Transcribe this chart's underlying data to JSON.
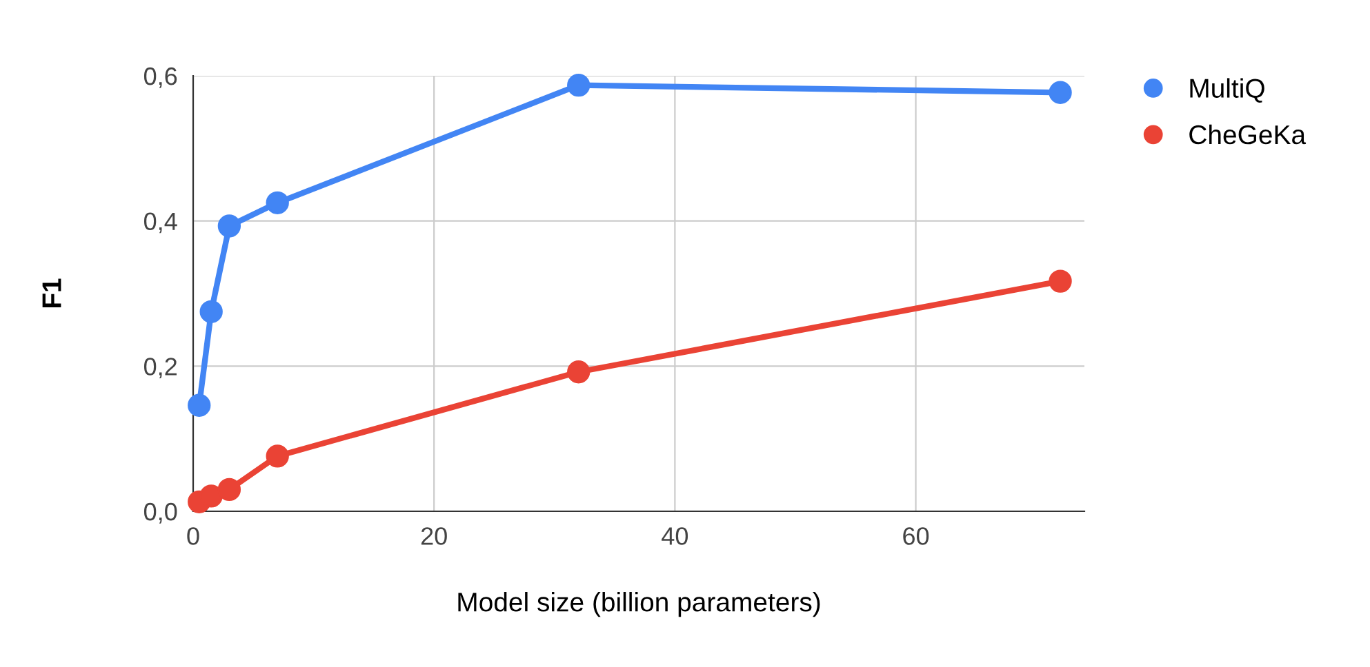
{
  "chart_data": {
    "type": "line",
    "xlabel": "Model size (billion parameters)",
    "ylabel": "F1",
    "x": [
      0.5,
      1.5,
      3,
      7,
      32,
      72
    ],
    "series": [
      {
        "name": "MultiQ",
        "color": "#4285f4",
        "values": [
          0.146,
          0.275,
          0.393,
          0.425,
          0.587,
          0.577
        ]
      },
      {
        "name": "CheGeKa",
        "color": "#ea4335",
        "values": [
          0.013,
          0.021,
          0.03,
          0.076,
          0.192,
          0.317
        ]
      }
    ],
    "xlim": [
      0,
      74
    ],
    "xticks": [
      0,
      20,
      40,
      60
    ],
    "ylim": [
      0,
      0.6
    ],
    "yticks": [
      {
        "value": 0,
        "label": "0,0"
      },
      {
        "value": 0.2,
        "label": "0,2"
      },
      {
        "value": 0.4,
        "label": "0,4"
      },
      {
        "value": 0.6,
        "label": "0,6"
      }
    ],
    "grid": true,
    "legend": "top right",
    "marker": "circle",
    "line_style": "solid"
  }
}
